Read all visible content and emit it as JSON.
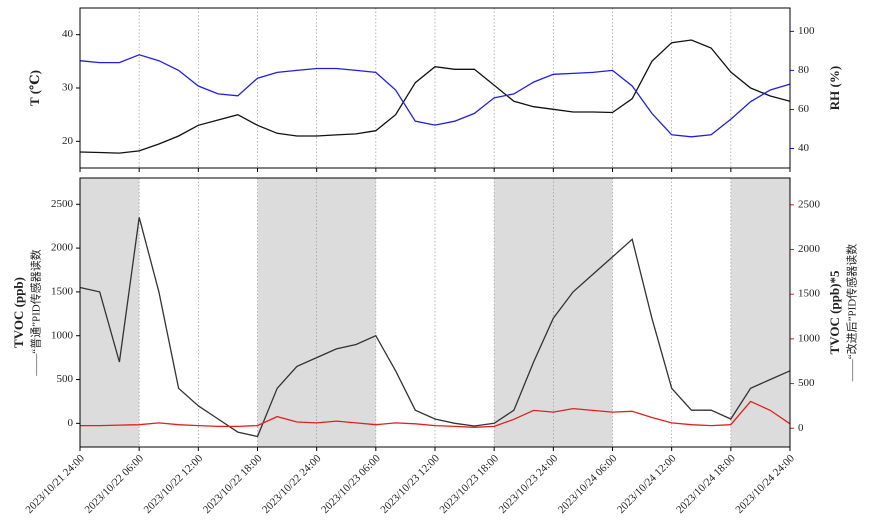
{
  "chart_data": [
    {
      "type": "line",
      "ylabel": "T (℃)",
      "y2label": "RH (%)",
      "y2color": "#1f1fe0",
      "x": [
        0,
        2,
        4,
        6,
        8,
        10,
        12,
        14,
        16,
        18,
        20,
        22,
        24,
        26,
        28,
        30,
        32,
        34,
        36,
        38,
        40,
        42,
        44,
        46,
        48,
        50,
        52,
        54,
        56,
        58,
        60,
        62,
        64,
        66,
        68,
        70,
        72
      ],
      "xlim": [
        0,
        72
      ],
      "ylim": [
        15,
        45
      ],
      "yticks": [
        20,
        30,
        40
      ],
      "y2lim": [
        30,
        112
      ],
      "y2ticks": [
        40,
        60,
        80,
        100
      ],
      "series": [
        {
          "name": "T",
          "color": "#111111",
          "values": [
            18,
            17.9,
            17.8,
            18.2,
            19.5,
            21,
            23,
            24,
            25,
            23,
            21.5,
            21,
            21,
            21.2,
            21.4,
            22,
            25,
            31,
            34,
            33.5,
            33.5,
            30.5,
            27.5,
            26.5,
            26,
            25.5,
            25.5,
            25.4,
            28,
            35,
            38.5,
            39,
            37.5,
            33,
            30,
            28.5,
            27.5
          ]
        },
        {
          "name": "RH",
          "color": "#1f1fe0",
          "axis": "y2",
          "values": [
            85,
            84,
            84,
            88,
            85,
            80,
            72,
            68,
            67,
            76,
            79,
            80,
            81,
            81,
            80,
            79,
            70,
            54,
            52,
            54,
            58,
            66,
            68,
            74,
            78,
            78.5,
            79,
            80,
            72,
            58,
            47,
            46,
            47,
            55,
            64,
            70,
            73
          ]
        }
      ]
    },
    {
      "type": "line",
      "ylabel": "TVOC (ppb)",
      "ylabel_note": "——“普通”PID传感器读数",
      "y2label": "TVOC (ppb)*5",
      "y2label_note": "——“改进后”PID传感器读数",
      "y2color": "#e02020",
      "x": [
        0,
        2,
        4,
        6,
        8,
        10,
        12,
        14,
        16,
        18,
        20,
        22,
        24,
        26,
        28,
        30,
        32,
        34,
        36,
        38,
        40,
        42,
        44,
        46,
        48,
        50,
        52,
        54,
        56,
        58,
        60,
        62,
        64,
        66,
        68,
        70,
        72
      ],
      "xlim": [
        0,
        72
      ],
      "xticks": [
        {
          "value": 0,
          "label": "2023/10/21 24:00"
        },
        {
          "value": 6,
          "label": "2023/10/22 06:00"
        },
        {
          "value": 12,
          "label": "2023/10/22 12:00"
        },
        {
          "value": 18,
          "label": "2023/10/22 18:00"
        },
        {
          "value": 24,
          "label": "2023/10/22 24:00"
        },
        {
          "value": 30,
          "label": "2023/10/23 06:00"
        },
        {
          "value": 36,
          "label": "2023/10/23 12:00"
        },
        {
          "value": 42,
          "label": "2023/10/23 18:00"
        },
        {
          "value": 48,
          "label": "2023/10/23 24:00"
        },
        {
          "value": 54,
          "label": "2023/10/24 06:00"
        },
        {
          "value": 60,
          "label": "2023/10/24 12:00"
        },
        {
          "value": 66,
          "label": "2023/10/24 18:00"
        },
        {
          "value": 72,
          "label": "2023/10/24 24:00"
        }
      ],
      "shaded_spans": [
        [
          0,
          6
        ],
        [
          18,
          30
        ],
        [
          42,
          54
        ],
        [
          66,
          72
        ]
      ],
      "ylim": [
        -270,
        2800
      ],
      "yticks": [
        0,
        500,
        1000,
        1500,
        2000,
        2500
      ],
      "y2lim": [
        -210,
        2800
      ],
      "y2ticks": [
        0,
        500,
        1000,
        1500,
        2000,
        2500
      ],
      "series": [
        {
          "name": "“普通”PID传感器读数",
          "color": "#333333",
          "values": [
            1550,
            1500,
            700,
            2350,
            1500,
            400,
            200,
            50,
            -100,
            -150,
            400,
            650,
            750,
            850,
            900,
            1000,
            600,
            150,
            50,
            0,
            -30,
            0,
            150,
            700,
            1200,
            1500,
            1700,
            1900,
            2100,
            1200,
            400,
            150,
            150,
            50,
            400,
            500,
            600
          ]
        },
        {
          "name": "“改进后”PID传感器读数",
          "color": "#e02020",
          "axis": "y2",
          "values": [
            30,
            30,
            35,
            40,
            60,
            40,
            30,
            20,
            20,
            30,
            130,
            70,
            60,
            80,
            60,
            40,
            60,
            50,
            30,
            20,
            10,
            20,
            100,
            200,
            180,
            220,
            200,
            180,
            190,
            120,
            60,
            40,
            30,
            40,
            300,
            200,
            50
          ]
        }
      ]
    }
  ]
}
